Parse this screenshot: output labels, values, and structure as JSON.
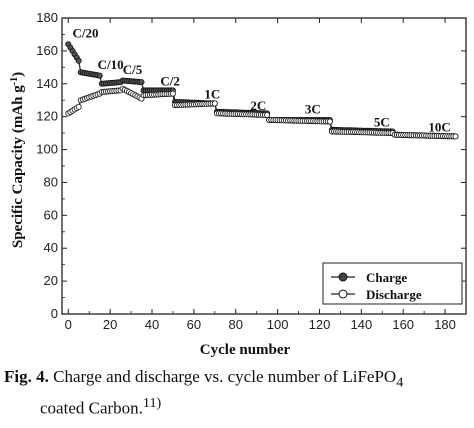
{
  "chart_data": {
    "type": "line",
    "xlabel": "Cycle number",
    "ylabel": "Specific Capacity (mAh g",
    "ylabel_sup": "-1",
    "ylabel_end": ")",
    "xlim": [
      -3,
      190
    ],
    "ylim": [
      0,
      180
    ],
    "xticks": [
      0,
      20,
      40,
      60,
      80,
      100,
      120,
      140,
      160,
      180
    ],
    "yticks": [
      0,
      20,
      40,
      60,
      80,
      100,
      120,
      140,
      160,
      180
    ],
    "grid": false,
    "legend_position": "bottom-right",
    "rate_labels": [
      {
        "text": "C/20",
        "x": 2,
        "y": 168
      },
      {
        "text": "C/10",
        "x": 14,
        "y": 149
      },
      {
        "text": "C/5",
        "x": 26,
        "y": 146
      },
      {
        "text": "C/2",
        "x": 44,
        "y": 139
      },
      {
        "text": "1C",
        "x": 65,
        "y": 131
      },
      {
        "text": "2C",
        "x": 87,
        "y": 124
      },
      {
        "text": "3C",
        "x": 113,
        "y": 122
      },
      {
        "text": "5C",
        "x": 146,
        "y": 114
      },
      {
        "text": "10C",
        "x": 172,
        "y": 111
      }
    ],
    "series": [
      {
        "name": "Charge",
        "marker": "filled",
        "segments": [
          {
            "x0": 0,
            "x1": 5,
            "y0": 164,
            "y1": 154
          },
          {
            "x0": 6,
            "x1": 15,
            "y0": 147,
            "y1": 145
          },
          {
            "x0": 16,
            "x1": 25,
            "y0": 140,
            "y1": 141
          },
          {
            "x0": 26,
            "x1": 35,
            "y0": 142,
            "y1": 141
          },
          {
            "x0": 36,
            "x1": 50,
            "y0": 136,
            "y1": 136
          },
          {
            "x0": 51,
            "x1": 70,
            "y0": 129,
            "y1": 128
          },
          {
            "x0": 71,
            "x1": 95,
            "y0": 123,
            "y1": 122
          },
          {
            "x0": 96,
            "x1": 125,
            "y0": 118,
            "y1": 118
          },
          {
            "x0": 126,
            "x1": 155,
            "y0": 112,
            "y1": 111
          },
          {
            "x0": 156,
            "x1": 185,
            "y0": 109,
            "y1": 108
          }
        ]
      },
      {
        "name": "Discharge",
        "marker": "open",
        "segments": [
          {
            "x0": 0,
            "x1": 5,
            "y0": 122,
            "y1": 126
          },
          {
            "x0": 6,
            "x1": 15,
            "y0": 130,
            "y1": 134
          },
          {
            "x0": 16,
            "x1": 25,
            "y0": 135,
            "y1": 136
          },
          {
            "x0": 26,
            "x1": 35,
            "y0": 137,
            "y1": 131
          },
          {
            "x0": 36,
            "x1": 50,
            "y0": 133,
            "y1": 134
          },
          {
            "x0": 51,
            "x1": 70,
            "y0": 127,
            "y1": 128
          },
          {
            "x0": 71,
            "x1": 95,
            "y0": 122,
            "y1": 121
          },
          {
            "x0": 96,
            "x1": 125,
            "y0": 118,
            "y1": 117
          },
          {
            "x0": 126,
            "x1": 155,
            "y0": 111,
            "y1": 110
          },
          {
            "x0": 156,
            "x1": 185,
            "y0": 109,
            "y1": 108
          }
        ]
      }
    ]
  },
  "caption": {
    "label": "Fig. 4.",
    "text_a": "Charge and discharge vs. cycle number of LiFePO",
    "sub": "4",
    "text_b": "coated  Carbon.",
    "ref": "11)"
  }
}
